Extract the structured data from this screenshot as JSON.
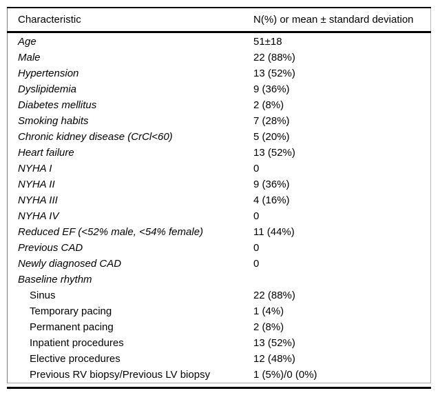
{
  "table": {
    "header": {
      "characteristic": "Characteristic",
      "value": "N(%) or mean ± standard deviation"
    },
    "rows": [
      {
        "label": "Age",
        "value": "51±18",
        "style": "italic"
      },
      {
        "label": "Male",
        "value": "22 (88%)",
        "style": "italic"
      },
      {
        "label": "Hypertension",
        "value": "13 (52%)",
        "style": "italic"
      },
      {
        "label": "Dyslipidemia",
        "value": "9 (36%)",
        "style": "italic"
      },
      {
        "label": "Diabetes mellitus",
        "value": "2 (8%)",
        "style": "italic"
      },
      {
        "label": "Smoking habits",
        "value": "7 (28%)",
        "style": "italic"
      },
      {
        "label": "Chronic kidney disease (CrCl<60)",
        "value": "5 (20%)",
        "style": "italic"
      },
      {
        "label": "Heart failure",
        "value": "13 (52%)",
        "style": "italic"
      },
      {
        "label": "NYHA I",
        "value": "0",
        "style": "italic"
      },
      {
        "label": "NYHA II",
        "value": "9 (36%)",
        "style": "italic"
      },
      {
        "label": "NYHA III",
        "value": "4 (16%)",
        "style": "italic"
      },
      {
        "label": "NYHA IV",
        "value": "0",
        "style": "italic"
      },
      {
        "label": "Reduced EF (<52% male, <54% female)",
        "value": "11 (44%)",
        "style": "italic"
      },
      {
        "label": "Previous CAD",
        "value": "0",
        "style": "italic"
      },
      {
        "label": "Newly diagnosed CAD",
        "value": "0",
        "style": "italic"
      },
      {
        "label": "Baseline rhythm",
        "value": "",
        "style": "italic"
      },
      {
        "label": "Sinus",
        "value": "22 (88%)",
        "style": "indent"
      },
      {
        "label": "Temporary pacing",
        "value": "1 (4%)",
        "style": "indent"
      },
      {
        "label": "Permanent pacing",
        "value": "2 (8%)",
        "style": "indent"
      },
      {
        "label": "Inpatient procedures",
        "value": "13 (52%)",
        "style": "indent"
      },
      {
        "label": "Elective procedures",
        "value": "12 (48%)",
        "style": "indent"
      },
      {
        "label": "Previous RV biopsy/Previous LV biopsy",
        "value": "1 (5%)/0 (0%)",
        "style": "indent"
      }
    ]
  }
}
